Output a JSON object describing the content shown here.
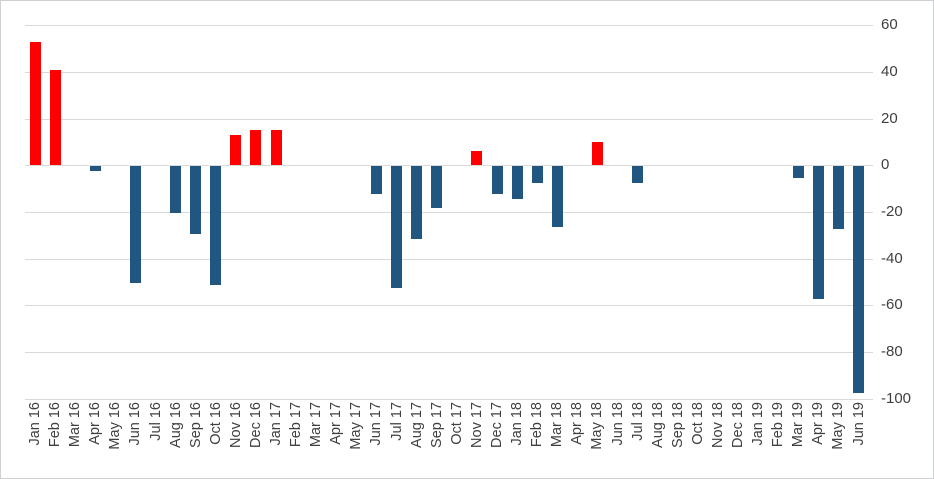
{
  "chart": {
    "title": "",
    "legend": "none"
  },
  "chart_data": {
    "type": "bar",
    "categories": [
      "Jan 16",
      "Feb 16",
      "Mar 16",
      "Apr 16",
      "May 16",
      "Jun 16",
      "Jul 16",
      "Aug 16",
      "Sep 16",
      "Oct 16",
      "Nov 16",
      "Dec 16",
      "Jan 17",
      "Feb 17",
      "Mar 17",
      "Apr 17",
      "May 17",
      "Jun 17",
      "Jul 17",
      "Aug 17",
      "Sep 17",
      "Oct 17",
      "Nov 17",
      "Dec 17",
      "Jan 18",
      "Feb 18",
      "Mar 18",
      "Apr 18",
      "May 18",
      "Jun 18",
      "Jul 18",
      "Aug 18",
      "Sep 18",
      "Oct 18",
      "Nov 18",
      "Dec 18",
      "Jan 19",
      "Feb 19",
      "Mar 19",
      "Apr 19",
      "May 19",
      "Jun 19"
    ],
    "values": [
      53,
      41,
      0,
      -2,
      0,
      -50,
      0,
      -20,
      -29,
      -51,
      13,
      15,
      15,
      0,
      0,
      0,
      0,
      -12,
      -52,
      -31,
      -18,
      0,
      6,
      -12,
      -14,
      -7,
      -26,
      0,
      10,
      0,
      -7,
      0,
      0,
      0,
      0,
      0,
      0,
      0,
      -5,
      -57,
      -27,
      -97
    ],
    "title": "",
    "xlabel": "",
    "ylabel": "",
    "ylim": [
      -100,
      60
    ],
    "yticks": [
      60,
      40,
      20,
      0,
      -20,
      -40,
      -60,
      -80,
      -100
    ],
    "y_axis_side": "right",
    "x_label_rotation": -90,
    "grid": true,
    "legend_position": "none",
    "positive_color": "#fe0000",
    "negative_color": "#20567f",
    "gridline_color": "#d9d9d9",
    "tick_label_color": "#404040",
    "background_color": "#ffffff",
    "border_color": "#cfd0d1"
  }
}
